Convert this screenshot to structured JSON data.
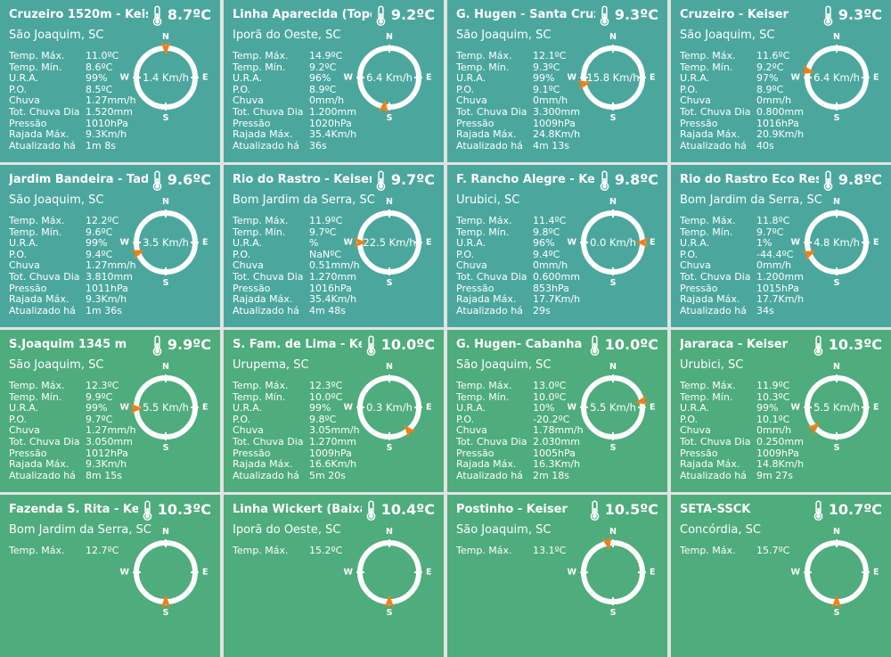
{
  "theme": {
    "teal": "#4BA79E",
    "green": "#4FAC7C",
    "arrow": "#F08019",
    "gutter": "#E3E3E3",
    "text": "#FFFFFF"
  },
  "compass": {
    "n": "N",
    "s": "S",
    "w": "W",
    "e": "E"
  },
  "cards": [
    {
      "title": "Cruzeiro 1520m - Keiser",
      "location": "São Joaquim, SC",
      "temperature": "8.7ºC",
      "tone": "teal",
      "wind": {
        "speed_label": "1.4 Km/h",
        "direction_deg": 0
      },
      "stats": [
        {
          "label": "Temp. Máx.",
          "value": "11.0ºC"
        },
        {
          "label": "Temp. Mín.",
          "value": "8.6ºC"
        },
        {
          "label": "U.R.A.",
          "value": "99%"
        },
        {
          "label": "P.O.",
          "value": "8.5ºC"
        },
        {
          "label": "Chuva",
          "value": "1.27mm/h"
        },
        {
          "label": "Tot. Chuva Dia",
          "value": "1.520mm"
        },
        {
          "label": "Pressão",
          "value": "1010hPa"
        },
        {
          "label": "Rajada Máx.",
          "value": "9.3Km/h"
        },
        {
          "label": "Atualizado há",
          "value": "1m 8s"
        }
      ]
    },
    {
      "title": "Linha Aparecida (Topo) -",
      "location": "Iporã do Oeste, SC",
      "temperature": "9.2ºC",
      "tone": "teal",
      "wind": {
        "speed_label": "6.4 Km/h",
        "direction_deg": 190
      },
      "stats": [
        {
          "label": "Temp. Máx.",
          "value": "14.9ºC"
        },
        {
          "label": "Temp. Mín.",
          "value": "9.2ºC"
        },
        {
          "label": "U.R.A.",
          "value": "96%"
        },
        {
          "label": "P.O.",
          "value": "8.9ºC"
        },
        {
          "label": "Chuva",
          "value": "0mm/h"
        },
        {
          "label": "Tot. Chuva Dia",
          "value": "1.200mm"
        },
        {
          "label": "Pressão",
          "value": "1020hPa"
        },
        {
          "label": "Rajada Máx.",
          "value": "35.4Km/h"
        },
        {
          "label": "Atualizado há",
          "value": "36s"
        }
      ]
    },
    {
      "title": "G. Hugen - Santa Cruz /-S",
      "location": "São Joaquim, SC",
      "temperature": "9.3ºC",
      "tone": "teal",
      "wind": {
        "speed_label": "15.8 Km/h",
        "direction_deg": 258
      },
      "stats": [
        {
          "label": "Temp. Máx.",
          "value": "12.1ºC"
        },
        {
          "label": "Temp. Mín.",
          "value": "9.3ºC"
        },
        {
          "label": "U.R.A.",
          "value": "99%"
        },
        {
          "label": "P.O.",
          "value": "9.1ºC"
        },
        {
          "label": "Chuva",
          "value": "0mm/h"
        },
        {
          "label": "Tot. Chuva Dia",
          "value": "3.300mm"
        },
        {
          "label": "Pressão",
          "value": "1009hPa"
        },
        {
          "label": "Rajada Máx.",
          "value": "24.8Km/h"
        },
        {
          "label": "Atualizado há",
          "value": "4m 13s"
        }
      ]
    },
    {
      "title": "Cruzeiro - Keiser",
      "location": "São Joaquim, SC",
      "temperature": "9.3ºC",
      "tone": "teal",
      "wind": {
        "speed_label": "6.4 Km/h",
        "direction_deg": 283
      },
      "stats": [
        {
          "label": "Temp. Máx.",
          "value": "11.6ºC"
        },
        {
          "label": "Temp. Mín.",
          "value": "9.2ºC"
        },
        {
          "label": "U.R.A.",
          "value": "97%"
        },
        {
          "label": "P.O.",
          "value": "8.9ºC"
        },
        {
          "label": "Chuva",
          "value": "0mm/h"
        },
        {
          "label": "Tot. Chuva Dia",
          "value": "0.800mm"
        },
        {
          "label": "Pressão",
          "value": "1016hPa"
        },
        {
          "label": "Rajada Máx.",
          "value": "20.9Km/h"
        },
        {
          "label": "Atualizado há",
          "value": "40s"
        }
      ]
    },
    {
      "title": "Jardim Bandeira - Tadeu",
      "location": "São Joaquim, SC",
      "temperature": "9.6ºC",
      "tone": "teal",
      "wind": {
        "speed_label": "3.5 Km/h",
        "direction_deg": 250
      },
      "stats": [
        {
          "label": "Temp. Máx.",
          "value": "12.2ºC"
        },
        {
          "label": "Temp. Mín.",
          "value": "9.6ºC"
        },
        {
          "label": "U.R.A.",
          "value": "99%"
        },
        {
          "label": "P.O.",
          "value": "9.4ºC"
        },
        {
          "label": "Chuva",
          "value": "1.27mm/h"
        },
        {
          "label": "Tot. Chuva Dia",
          "value": "3.810mm"
        },
        {
          "label": "Pressão",
          "value": "1011hPa"
        },
        {
          "label": "Rajada Máx.",
          "value": "9.3Km/h"
        },
        {
          "label": "Atualizado há",
          "value": "1m 36s"
        }
      ]
    },
    {
      "title": "Rio do Rastro - Keiser",
      "location": "Bom Jardim da Serra, SC",
      "temperature": "9.7ºC",
      "tone": "teal",
      "wind": {
        "speed_label": "22.5 Km/h",
        "direction_deg": 270
      },
      "stats": [
        {
          "label": "Temp. Máx.",
          "value": "11.9ºC"
        },
        {
          "label": "Temp. Mín.",
          "value": "9.7ºC"
        },
        {
          "label": "U.R.A.",
          "value": "%"
        },
        {
          "label": "P.O.",
          "value": "NaNºC"
        },
        {
          "label": "Chuva",
          "value": "0.51mm/h"
        },
        {
          "label": "Tot. Chuva Dia",
          "value": "1.270mm"
        },
        {
          "label": "Pressão",
          "value": "1016hPa"
        },
        {
          "label": "Rajada Máx.",
          "value": "35.4Km/h"
        },
        {
          "label": "Atualizado há",
          "value": "4m 48s"
        }
      ]
    },
    {
      "title": "F. Rancho Alegre - Keiser",
      "location": "Urubici, SC",
      "temperature": "9.8ºC",
      "tone": "teal",
      "wind": {
        "speed_label": "0.0 Km/h",
        "direction_deg": 90
      },
      "stats": [
        {
          "label": "Temp. Máx.",
          "value": "11.4ºC"
        },
        {
          "label": "Temp. Mín.",
          "value": "9.8ºC"
        },
        {
          "label": "U.R.A.",
          "value": "96%"
        },
        {
          "label": "P.O.",
          "value": "9.4ºC"
        },
        {
          "label": "Chuva",
          "value": "0mm/h"
        },
        {
          "label": "Tot. Chuva Dia",
          "value": "0.600mm"
        },
        {
          "label": "Pressão",
          "value": "853hPa"
        },
        {
          "label": "Rajada Máx.",
          "value": "17.7Km/h"
        },
        {
          "label": "Atualizado há",
          "value": "29s"
        }
      ]
    },
    {
      "title": "Rio do Rastro Eco Resort",
      "location": "Bom Jardim da Serra, SC",
      "temperature": "9.8ºC",
      "tone": "teal",
      "wind": {
        "speed_label": "4.8 Km/h",
        "direction_deg": 248
      },
      "stats": [
        {
          "label": "Temp. Máx.",
          "value": "11.8ºC"
        },
        {
          "label": "Temp. Mín.",
          "value": "9.7ºC"
        },
        {
          "label": "U.R.A.",
          "value": "1%"
        },
        {
          "label": "P.O.",
          "value": "-44.4ºC"
        },
        {
          "label": "Chuva",
          "value": "0mm/h"
        },
        {
          "label": "Tot. Chuva Dia",
          "value": "1.200mm"
        },
        {
          "label": "Pressão",
          "value": "1015hPa"
        },
        {
          "label": "Rajada Máx.",
          "value": "17.7Km/h"
        },
        {
          "label": "Atualizado há",
          "value": "34s"
        }
      ]
    },
    {
      "title": "S.Joaquim 1345 m",
      "location": "São Joaquim, SC",
      "temperature": "9.9ºC",
      "tone": "green",
      "wind": {
        "speed_label": "5.5 Km/h",
        "direction_deg": 268
      },
      "stats": [
        {
          "label": "Temp. Máx.",
          "value": "12.3ºC"
        },
        {
          "label": "Temp. Mín.",
          "value": "9.9ºC"
        },
        {
          "label": "U.R.A.",
          "value": "99%"
        },
        {
          "label": "P.O.",
          "value": "9.7ºC"
        },
        {
          "label": "Chuva",
          "value": "1.27mm/h"
        },
        {
          "label": "Tot. Chuva Dia",
          "value": "3.050mm"
        },
        {
          "label": "Pressão",
          "value": "1012hPa"
        },
        {
          "label": "Rajada Máx.",
          "value": "9.3Km/h"
        },
        {
          "label": "Atualizado há",
          "value": "8m 15s"
        }
      ]
    },
    {
      "title": "S. Fam. de Lima - Keiser",
      "location": "Urupema, SC",
      "temperature": "10.0ºC",
      "tone": "green",
      "wind": {
        "speed_label": "0.3 Km/h",
        "direction_deg": 140
      },
      "stats": [
        {
          "label": "Temp. Máx.",
          "value": "12.3ºC"
        },
        {
          "label": "Temp. Mín.",
          "value": "10.0ºC"
        },
        {
          "label": "U.R.A.",
          "value": "99%"
        },
        {
          "label": "P.O.",
          "value": "9.8ºC"
        },
        {
          "label": "Chuva",
          "value": "3.05mm/h"
        },
        {
          "label": "Tot. Chuva Dia",
          "value": "1.270mm"
        },
        {
          "label": "Pressão",
          "value": "1009hPa"
        },
        {
          "label": "Rajada Máx.",
          "value": "16.6Km/h"
        },
        {
          "label": "Atualizado há",
          "value": "5m 20s"
        }
      ]
    },
    {
      "title": "G. Hugen- Cabanha Fundo",
      "location": "São Joaquim, SC",
      "temperature": "10.0ºC",
      "tone": "green",
      "wind": {
        "speed_label": "5.5 Km/h",
        "direction_deg": 78
      },
      "stats": [
        {
          "label": "Temp. Máx.",
          "value": "13.0ºC"
        },
        {
          "label": "Temp. Mín.",
          "value": "10.0ºC"
        },
        {
          "label": "U.R.A.",
          "value": "10%"
        },
        {
          "label": "P.O.",
          "value": "-20.2ºC"
        },
        {
          "label": "Chuva",
          "value": "1.78mm/h"
        },
        {
          "label": "Tot. Chuva Dia",
          "value": "2.030mm"
        },
        {
          "label": "Pressão",
          "value": "1005hPa"
        },
        {
          "label": "Rajada Máx.",
          "value": "16.3Km/h"
        },
        {
          "label": "Atualizado há",
          "value": "2m 18s"
        }
      ]
    },
    {
      "title": "Jararaca - Keiser",
      "location": "Urubici, SC",
      "temperature": "10.3ºC",
      "tone": "green",
      "wind": {
        "speed_label": "5.5 Km/h",
        "direction_deg": 228
      },
      "stats": [
        {
          "label": "Temp. Máx.",
          "value": "11.9ºC"
        },
        {
          "label": "Temp. Mín.",
          "value": "10.3ºC"
        },
        {
          "label": "U.R.A.",
          "value": "99%"
        },
        {
          "label": "P.O.",
          "value": "10.1ºC"
        },
        {
          "label": "Chuva",
          "value": "0mm/h"
        },
        {
          "label": "Tot. Chuva Dia",
          "value": "0.250mm"
        },
        {
          "label": "Pressão",
          "value": "1009hPa"
        },
        {
          "label": "Rajada Máx.",
          "value": "14.8Km/h"
        },
        {
          "label": "Atualizado há",
          "value": "9m 27s"
        }
      ]
    },
    {
      "title": "Fazenda S. Rita - Keiser",
      "location": "Bom Jardim da Serra, SC",
      "temperature": "10.3ºC",
      "tone": "green",
      "wind": {
        "speed_label": "",
        "direction_deg": 180
      },
      "stats": [
        {
          "label": "Temp. Máx.",
          "value": "12.7ºC"
        }
      ]
    },
    {
      "title": "Linha Wickert (Baixada) -",
      "location": "Iporã do Oeste, SC",
      "temperature": "10.4ºC",
      "tone": "green",
      "wind": {
        "speed_label": "",
        "direction_deg": 180
      },
      "stats": [
        {
          "label": "Temp. Máx.",
          "value": "15.2ºC"
        }
      ]
    },
    {
      "title": "Postinho - Keiser",
      "location": "São Joaquim, SC",
      "temperature": "10.5ºC",
      "tone": "green",
      "wind": {
        "speed_label": "",
        "direction_deg": 350
      },
      "stats": [
        {
          "label": "Temp. Máx.",
          "value": "13.1ºC"
        }
      ]
    },
    {
      "title": "SETA-SSCK",
      "location": "Concórdia, SC",
      "temperature": "10.7ºC",
      "tone": "green",
      "wind": {
        "speed_label": "",
        "direction_deg": 180
      },
      "stats": [
        {
          "label": "Temp. Máx.",
          "value": "15.7ºC"
        }
      ]
    }
  ]
}
